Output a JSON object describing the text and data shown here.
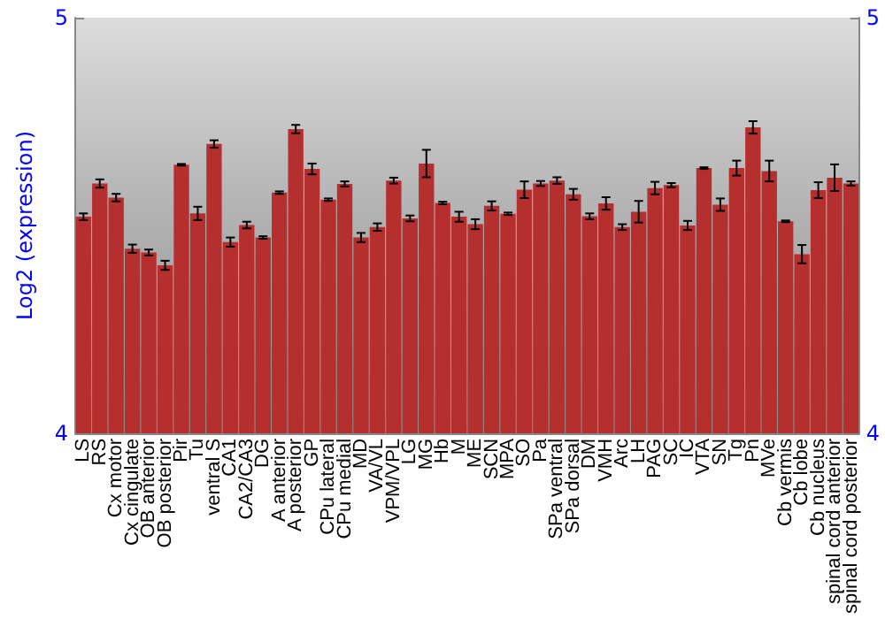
{
  "chart_data": {
    "type": "bar",
    "ylabel": "Log2 (expression)",
    "categories": [
      "LS",
      "RS",
      "Cx motor",
      "Cx cingulate",
      "OB anterior",
      "OB posterior",
      "Pir",
      "Tu",
      "ventral S",
      "CA1",
      "CA2/CA3",
      "DG",
      "A anterior",
      "A posterior",
      "GP",
      "CPu lateral",
      "CPu medial",
      "MD",
      "VA/VL",
      "VPM/VPL",
      "LG",
      "MG",
      "Hb",
      "M",
      "ME",
      "SCN",
      "MPA",
      "SO",
      "Pa",
      "SPa ventral",
      "SPa dorsal",
      "DM",
      "VMH",
      "Arc",
      "LH",
      "PAG",
      "SC",
      "IC",
      "VTA",
      "SN",
      "Tg",
      "Pn",
      "MVe",
      "Cb vermis",
      "Cb lobe",
      "Cb nucleus",
      "spinal cord anterior",
      "spinal cord posterior"
    ],
    "values": [
      4.521,
      4.601,
      4.567,
      4.444,
      4.435,
      4.404,
      4.646,
      4.529,
      4.696,
      4.46,
      4.501,
      4.471,
      4.579,
      4.732,
      4.636,
      4.562,
      4.6,
      4.471,
      4.496,
      4.608,
      4.517,
      4.649,
      4.554,
      4.521,
      4.503,
      4.547,
      4.528,
      4.586,
      4.601,
      4.608,
      4.575,
      4.522,
      4.553,
      4.496,
      4.533,
      4.59,
      4.597,
      4.5,
      4.638,
      4.55,
      4.638,
      4.736,
      4.631,
      4.51,
      4.431,
      4.585,
      4.615,
      4.601
    ],
    "errors": [
      0.008,
      0.01,
      0.009,
      0.01,
      0.007,
      0.011,
      0.002,
      0.016,
      0.009,
      0.011,
      0.008,
      0.003,
      0.003,
      0.01,
      0.013,
      0.003,
      0.006,
      0.011,
      0.009,
      0.007,
      0.007,
      0.033,
      0.003,
      0.012,
      0.012,
      0.011,
      0.003,
      0.02,
      0.006,
      0.008,
      0.013,
      0.007,
      0.015,
      0.007,
      0.026,
      0.015,
      0.005,
      0.011,
      0.002,
      0.015,
      0.018,
      0.015,
      0.025,
      0.002,
      0.022,
      0.019,
      0.032,
      0.005
    ],
    "color": "#b52f2f",
    "ylim": [
      4,
      5
    ],
    "yticks": [
      4,
      5
    ],
    "y2lim": [
      4,
      5
    ],
    "y2ticks": [
      4,
      5
    ],
    "grid": false
  }
}
